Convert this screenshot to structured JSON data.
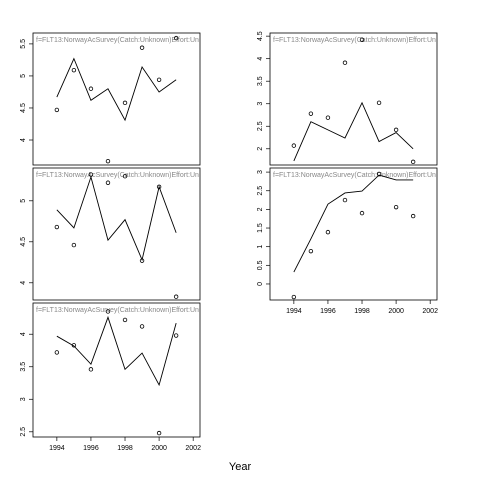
{
  "xlabel": "Year",
  "chart_data": [
    {
      "type": "line",
      "title": "f=FLT13:NorwayAcSurvey(Catch:Unknown)Effort:Un",
      "x": [
        1994,
        1995,
        1996,
        1997,
        1998,
        1999,
        2000,
        2001
      ],
      "series": [
        {
          "style": "points",
          "color": "#000000",
          "values": [
            4.47,
            5.09,
            4.8,
            3.67,
            4.58,
            5.44,
            4.94,
            5.59
          ]
        },
        {
          "style": "line",
          "color": "#000000",
          "values": [
            4.67,
            5.27,
            4.62,
            4.8,
            4.31,
            5.14,
            4.75,
            4.94
          ]
        }
      ],
      "xlim": [
        1992.6,
        2002.4
      ],
      "ylim": [
        3.61,
        5.67
      ],
      "yticks": [
        4.0,
        4.5,
        5.0,
        5.5
      ]
    },
    {
      "type": "line",
      "title": "f=FLT13:NorwayAcSurvey(Catch:Unknown)Effort:Un",
      "x": [
        1994,
        1995,
        1996,
        1997,
        1998,
        1999,
        2000,
        2001
      ],
      "series": [
        {
          "style": "points",
          "color": "#000000",
          "values": [
            4.68,
            4.46,
            5.32,
            5.22,
            5.3,
            4.27,
            5.17,
            3.83
          ]
        },
        {
          "style": "line",
          "color": "#000000",
          "values": [
            4.89,
            4.67,
            5.29,
            4.52,
            4.77,
            4.28,
            5.17,
            4.61
          ]
        }
      ],
      "xlim": [
        1992.6,
        2002.4
      ],
      "ylim": [
        3.79,
        5.4
      ],
      "yticks": [
        4.0,
        4.5,
        5.0
      ]
    },
    {
      "type": "line",
      "title": "f=FLT13:NorwayAcSurvey(Catch:Unknown)Effort:Un",
      "x": [
        1994,
        1995,
        1996,
        1997,
        1998,
        1999,
        2000,
        2001
      ],
      "series": [
        {
          "style": "points",
          "color": "#000000",
          "values": [
            3.72,
            3.83,
            3.46,
            4.35,
            4.22,
            4.12,
            2.48,
            3.98
          ]
        },
        {
          "style": "line",
          "color": "#000000",
          "values": [
            3.97,
            3.82,
            3.54,
            4.26,
            3.46,
            3.71,
            3.22,
            4.17
          ]
        }
      ],
      "xlim": [
        1992.6,
        2002.4
      ],
      "ylim": [
        2.42,
        4.48
      ],
      "yticks": [
        2.5,
        3.0,
        3.5,
        4.0
      ],
      "xticks": [
        1994,
        1996,
        1998,
        2000,
        2002
      ]
    },
    {
      "type": "line",
      "title": "f=FLT13:NorwayAcSurvey(Catch:Unknown)Effort:Un",
      "x": [
        1994,
        1995,
        1996,
        1997,
        1998,
        1999,
        2000,
        2001
      ],
      "series": [
        {
          "style": "points",
          "color": "#000000",
          "values": [
            2.07,
            2.78,
            2.69,
            3.91,
            4.42,
            3.02,
            2.42,
            1.71
          ]
        },
        {
          "style": "line",
          "color": "#000000",
          "values": [
            1.73,
            2.6,
            2.42,
            2.24,
            3.02,
            2.16,
            2.36,
            2.0
          ]
        }
      ],
      "xlim": [
        1992.6,
        2002.4
      ],
      "ylim": [
        1.64,
        4.57
      ],
      "yticks": [
        2.0,
        2.5,
        3.0,
        3.5,
        4.0,
        4.5
      ]
    },
    {
      "type": "line",
      "title": "f=FLT13:NorwayAcSurvey(Catch:Unknown)Effort:Un",
      "x": [
        1994,
        1995,
        1996,
        1997,
        1998,
        1999,
        2000,
        2001
      ],
      "series": [
        {
          "style": "points",
          "color": "#000000",
          "values": [
            -0.35,
            0.88,
            1.39,
            2.25,
            1.9,
            2.95,
            2.06,
            1.82
          ]
        },
        {
          "style": "line",
          "color": "#000000",
          "values": [
            0.32,
            1.21,
            2.14,
            2.44,
            2.49,
            2.92,
            2.79,
            2.79
          ]
        }
      ],
      "xlim": [
        1992.6,
        2002.4
      ],
      "ylim": [
        -0.43,
        3.11
      ],
      "yticks": [
        0.0,
        0.5,
        1.0,
        1.5,
        2.0,
        2.5,
        3.0
      ],
      "xticks": [
        1994,
        1996,
        1998,
        2000,
        2002
      ]
    }
  ]
}
